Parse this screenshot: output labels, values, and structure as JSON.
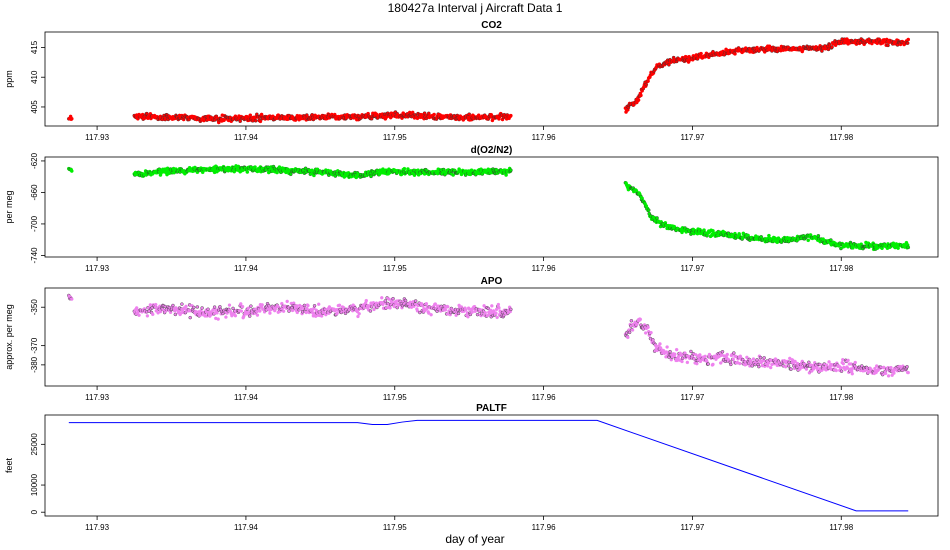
{
  "title": "180427a   Interval j Aircraft Data 1",
  "x_axis_label": "day of year",
  "chart_data": [
    {
      "type": "scatter",
      "title": "CO2",
      "ylabel": "ppm",
      "color": "#ff0000",
      "xlim": [
        117.9265,
        117.9865
      ],
      "ylim": [
        401.8,
        417.6
      ],
      "x_ticks": [
        117.93,
        117.94,
        117.95,
        117.96,
        117.97,
        117.98
      ],
      "y_ticks": [
        405,
        410,
        415
      ],
      "segments": [
        {
          "x": [
            117.9281,
            117.9283
          ],
          "y": [
            403.3,
            403.3
          ]
        },
        {
          "x": [
            117.9325,
            117.935,
            117.9375,
            117.94,
            117.9425,
            117.945,
            117.9475,
            117.95,
            117.9525,
            117.955,
            117.9578
          ],
          "y": [
            403.4,
            403.2,
            403.0,
            403.1,
            403.2,
            403.3,
            403.4,
            403.6,
            403.4,
            403.3,
            403.4
          ]
        },
        {
          "x": [
            117.9655,
            117.9662,
            117.9668,
            117.9672,
            117.9677,
            117.9685,
            117.9695,
            117.971,
            117.973,
            117.975,
            117.977,
            117.979,
            117.98,
            117.982,
            117.9845
          ],
          "y": [
            404.6,
            405.8,
            408.5,
            410.6,
            411.8,
            412.8,
            413.0,
            413.7,
            414.4,
            414.8,
            414.7,
            415.0,
            416.0,
            416.0,
            415.8
          ]
        }
      ]
    },
    {
      "type": "scatter",
      "title": "d(O2/N2)",
      "ylabel": "per meg",
      "color": "#00ee00",
      "xlim": [
        117.9265,
        117.9865
      ],
      "ylim": [
        -742,
        -615
      ],
      "x_ticks": [
        117.93,
        117.94,
        117.95,
        117.96,
        117.97,
        117.98
      ],
      "y_ticks": [
        -620,
        -660,
        -700,
        -740
      ],
      "segments": [
        {
          "x": [
            117.9281,
            117.9283
          ],
          "y": [
            -630,
            -630
          ]
        },
        {
          "x": [
            117.9325,
            117.935,
            117.9375,
            117.94,
            117.9425,
            117.945,
            117.9475,
            117.95,
            117.9525,
            117.955,
            117.9578
          ],
          "y": [
            -637,
            -633,
            -630,
            -630,
            -632,
            -634,
            -638,
            -633,
            -634,
            -634,
            -633
          ]
        },
        {
          "x": [
            117.9655,
            117.9662,
            117.9667,
            117.9672,
            117.9677,
            117.9685,
            117.97,
            117.972,
            117.974,
            117.976,
            117.978,
            117.98,
            117.982,
            117.9845
          ],
          "y": [
            -651,
            -658,
            -670,
            -690,
            -698,
            -705,
            -710,
            -713,
            -718,
            -721,
            -716,
            -728,
            -728,
            -727
          ]
        }
      ]
    },
    {
      "type": "scatter",
      "title": "APO",
      "ylabel": "approx. per meg",
      "color": "#ee82ee",
      "xlim": [
        117.9265,
        117.9865
      ],
      "ylim": [
        -391,
        -340
      ],
      "x_ticks": [
        117.93,
        117.94,
        117.95,
        117.96,
        117.97,
        117.98
      ],
      "y_ticks": [
        -350,
        -370,
        -380
      ],
      "segments": [
        {
          "x": [
            117.9281,
            117.9283
          ],
          "y": [
            -346,
            -346
          ]
        },
        {
          "x": [
            117.9325,
            117.935,
            117.9375,
            117.94,
            117.9425,
            117.945,
            117.9475,
            117.95,
            117.9525,
            117.955,
            117.9578
          ],
          "y": [
            -352,
            -351,
            -353,
            -352,
            -350,
            -352,
            -351,
            -347,
            -351,
            -352,
            -352
          ]
        },
        {
          "x": [
            117.9655,
            117.966,
            117.9665,
            117.967,
            117.9675,
            117.9685,
            117.97,
            117.972,
            117.974,
            117.976,
            117.978,
            117.98,
            117.982,
            117.9845
          ],
          "y": [
            -365,
            -360,
            -357,
            -362,
            -370,
            -375,
            -377,
            -376,
            -378,
            -379,
            -381,
            -381,
            -383,
            -382
          ]
        }
      ]
    },
    {
      "type": "line",
      "title": "PALTF",
      "ylabel": "feet",
      "color": "#0000ff",
      "xlim": [
        117.9265,
        117.9865
      ],
      "ylim": [
        -1400,
        35800
      ],
      "x_ticks": [
        117.93,
        117.94,
        117.95,
        117.96,
        117.97,
        117.98
      ],
      "y_ticks": [
        0,
        10000,
        25000
      ],
      "x": [
        117.9281,
        117.9475,
        117.9485,
        117.9495,
        117.9505,
        117.9515,
        117.9636,
        117.981,
        117.9845
      ],
      "y": [
        33000,
        33000,
        32300,
        32300,
        33200,
        33800,
        33800,
        500,
        500
      ]
    }
  ]
}
